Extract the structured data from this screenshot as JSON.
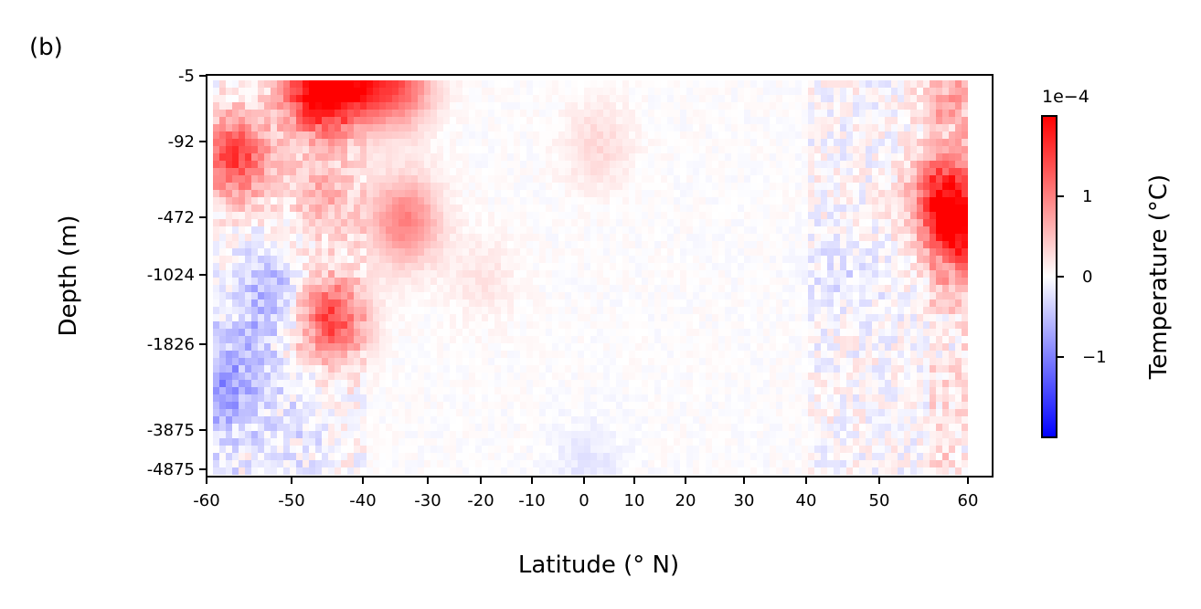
{
  "panel_label": "(b)",
  "chart_data": {
    "type": "heatmap",
    "xlabel": "Latitude (° N)",
    "ylabel": "Depth (m)",
    "x_ticks": [
      -60,
      -50,
      -40,
      -30,
      -20,
      -10,
      0,
      10,
      20,
      30,
      40,
      50,
      60
    ],
    "x_tick_labels": [
      "-60",
      "-50",
      "-40",
      "-30",
      "-20",
      "-10",
      "0",
      "10",
      "20",
      "30",
      "40",
      "50",
      "60"
    ],
    "y_ticks": [
      -5,
      -92,
      -472,
      -1024,
      -1826,
      -3875,
      -4875
    ],
    "y_tick_labels": [
      "-5",
      "-92",
      "-472",
      "-1024",
      "-1826",
      "-3875",
      "-4875"
    ],
    "colorbar": {
      "label": "Temperature (°C)",
      "scale_label": "1e−4",
      "colormap": "bwr",
      "range": [
        -2,
        2
      ],
      "ticks": [
        1,
        0,
        -1
      ],
      "tick_labels": [
        "1",
        "0",
        "−1"
      ]
    },
    "anomalies": [
      {
        "lat": -47,
        "depth": -20,
        "value": 1.9
      },
      {
        "lat": -42,
        "depth": -10,
        "value": 1.4
      },
      {
        "lat": -35,
        "depth": -10,
        "value": 1.2
      },
      {
        "lat": -57,
        "depth": -150,
        "value": 1.5
      },
      {
        "lat": -46,
        "depth": -350,
        "value": 0.6
      },
      {
        "lat": -34,
        "depth": -472,
        "value": 1.0
      },
      {
        "lat": -45,
        "depth": -1500,
        "value": 1.5
      },
      {
        "lat": -58,
        "depth": -2700,
        "value": -0.7
      },
      {
        "lat": -53,
        "depth": -1200,
        "value": -0.6
      },
      {
        "lat": 2,
        "depth": -92,
        "value": 0.3
      },
      {
        "lat": 57,
        "depth": -350,
        "value": 1.4
      },
      {
        "lat": 59,
        "depth": -600,
        "value": 1.5
      },
      {
        "lat": 58,
        "depth": -20,
        "value": 0.5
      },
      {
        "lat": 45,
        "depth": -1024,
        "value": -0.2
      },
      {
        "lat": -20,
        "depth": -1024,
        "value": 0.2
      },
      {
        "lat": 0,
        "depth": -4700,
        "value": -0.2
      }
    ]
  }
}
